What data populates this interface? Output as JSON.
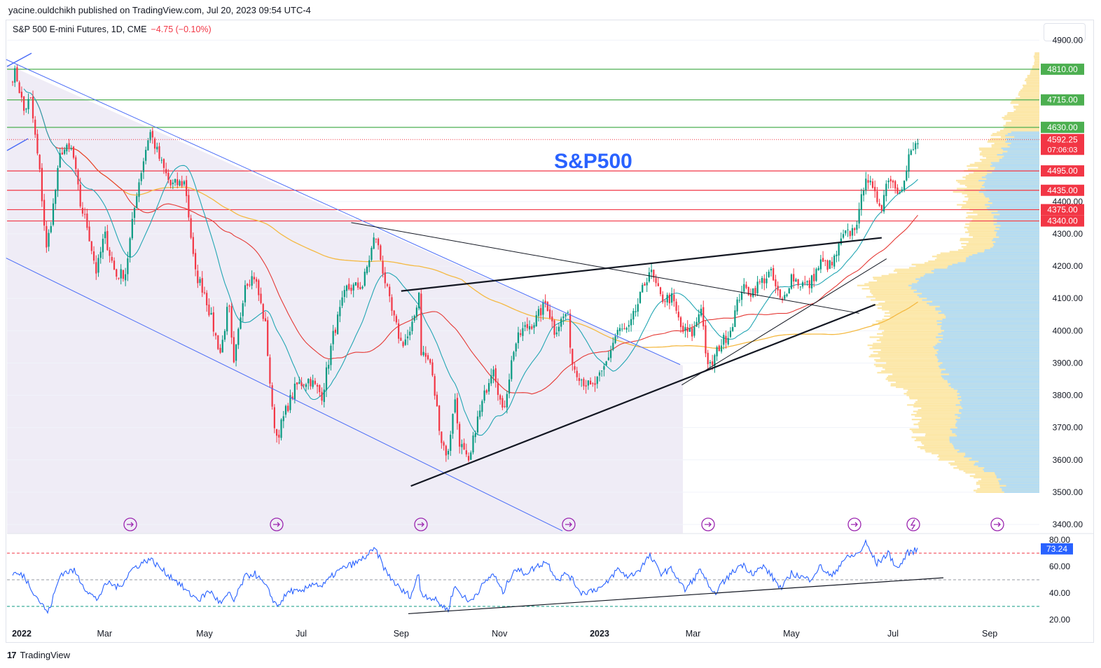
{
  "publisher": "yacine.ouldchikh published on TradingView.com, Jul 20, 2023 09:54 UTC-4",
  "symbol": {
    "name": "S&P 500 E-mini Futures, 1D, CME",
    "change": "−4.75 (−0.10%)"
  },
  "annotation": "S&P500",
  "brand": "TradingView",
  "colors": {
    "up": "#089981",
    "down": "#f23645",
    "channel": "#4a6cf7",
    "channel_fill": "#e9e5f3",
    "ma_fast": "#22a6b3",
    "ma_mid": "#e53935",
    "ma_slow": "#f4b942",
    "resistance": "#4caf50",
    "support": "#f23645",
    "rsi": "#2962ff",
    "vp_up": "#fce7a8",
    "vp_blue": "#b5dcf2",
    "event": "#9c27b0"
  },
  "chart_data": [
    {
      "type": "candlestick",
      "title": "S&P 500 E-mini Futures, 1D, CME",
      "x_ticks": [
        "2022",
        "Mar",
        "May",
        "Jul",
        "Sep",
        "Nov",
        "2023",
        "Mar",
        "May",
        "Jul",
        "Sep"
      ],
      "y_ticks": [
        3400,
        3500,
        3600,
        3700,
        3800,
        3900,
        4000,
        4100,
        4200,
        4300,
        4400,
        4900
      ],
      "ylim": [
        3380,
        4940
      ],
      "last_price": {
        "value": "4592.25",
        "countdown": "07:06:03"
      },
      "levels": [
        {
          "value": 4810,
          "label": "4810.00",
          "kind": "resistance"
        },
        {
          "value": 4715,
          "label": "4715.00",
          "kind": "resistance"
        },
        {
          "value": 4630,
          "label": "4630.00",
          "kind": "resistance"
        },
        {
          "value": 4495,
          "label": "4495.00",
          "kind": "support"
        },
        {
          "value": 4435,
          "label": "4435.00",
          "kind": "support"
        },
        {
          "value": 4375,
          "label": "4375.00",
          "kind": "support"
        },
        {
          "value": 4340,
          "label": "4340.00",
          "kind": "support"
        }
      ],
      "price_path": [
        [
          "2022-01-03",
          4790
        ],
        [
          "2022-01-05",
          4800
        ],
        [
          "2022-01-10",
          4680
        ],
        [
          "2022-01-14",
          4720
        ],
        [
          "2022-01-20",
          4480
        ],
        [
          "2022-01-24",
          4250
        ],
        [
          "2022-01-28",
          4380
        ],
        [
          "2022-02-02",
          4560
        ],
        [
          "2022-02-09",
          4560
        ],
        [
          "2022-02-14",
          4390
        ],
        [
          "2022-02-18",
          4330
        ],
        [
          "2022-02-24",
          4180
        ],
        [
          "2022-03-01",
          4300
        ],
        [
          "2022-03-08",
          4170
        ],
        [
          "2022-03-14",
          4180
        ],
        [
          "2022-03-21",
          4430
        ],
        [
          "2022-03-29",
          4620
        ],
        [
          "2022-04-05",
          4520
        ],
        [
          "2022-04-11",
          4450
        ],
        [
          "2022-04-20",
          4460
        ],
        [
          "2022-04-26",
          4180
        ],
        [
          "2022-05-02",
          4120
        ],
        [
          "2022-05-09",
          3980
        ],
        [
          "2022-05-12",
          3930
        ],
        [
          "2022-05-17",
          4090
        ],
        [
          "2022-05-20",
          3880
        ],
        [
          "2022-05-27",
          4150
        ],
        [
          "2022-06-02",
          4170
        ],
        [
          "2022-06-09",
          4010
        ],
        [
          "2022-06-13",
          3750
        ],
        [
          "2022-06-16",
          3670
        ],
        [
          "2022-06-22",
          3760
        ],
        [
          "2022-06-28",
          3830
        ],
        [
          "2022-07-06",
          3850
        ],
        [
          "2022-07-14",
          3800
        ],
        [
          "2022-07-21",
          3990
        ],
        [
          "2022-07-29",
          4130
        ],
        [
          "2022-08-08",
          4140
        ],
        [
          "2022-08-16",
          4300
        ],
        [
          "2022-08-23",
          4130
        ],
        [
          "2022-08-26",
          4060
        ],
        [
          "2022-09-01",
          3960
        ],
        [
          "2022-09-07",
          3990
        ],
        [
          "2022-09-12",
          4120
        ],
        [
          "2022-09-13",
          3940
        ],
        [
          "2022-09-19",
          3900
        ],
        [
          "2022-09-26",
          3660
        ],
        [
          "2022-09-30",
          3610
        ],
        [
          "2022-10-04",
          3800
        ],
        [
          "2022-10-07",
          3660
        ],
        [
          "2022-10-13",
          3580
        ],
        [
          "2022-10-17",
          3700
        ],
        [
          "2022-10-21",
          3770
        ],
        [
          "2022-10-28",
          3900
        ],
        [
          "2022-11-03",
          3740
        ],
        [
          "2022-11-10",
          3950
        ],
        [
          "2022-11-15",
          4000
        ],
        [
          "2022-11-23",
          4030
        ],
        [
          "2022-11-30",
          4090
        ],
        [
          "2022-12-05",
          4000
        ],
        [
          "2022-12-13",
          4060
        ],
        [
          "2022-12-16",
          3900
        ],
        [
          "2022-12-22",
          3850
        ],
        [
          "2022-12-28",
          3820
        ],
        [
          "2023-01-03",
          3860
        ],
        [
          "2023-01-06",
          3900
        ],
        [
          "2023-01-13",
          4000
        ],
        [
          "2023-01-20",
          4000
        ],
        [
          "2023-01-27",
          4100
        ],
        [
          "2023-02-02",
          4190
        ],
        [
          "2023-02-09",
          4100
        ],
        [
          "2023-02-16",
          4100
        ],
        [
          "2023-02-22",
          4000
        ],
        [
          "2023-03-01",
          3990
        ],
        [
          "2023-03-06",
          4080
        ],
        [
          "2023-03-10",
          3880
        ],
        [
          "2023-03-13",
          3900
        ],
        [
          "2023-03-17",
          3950
        ],
        [
          "2023-03-24",
          4000
        ],
        [
          "2023-03-31",
          4130
        ],
        [
          "2023-04-06",
          4120
        ],
        [
          "2023-04-14",
          4160
        ],
        [
          "2023-04-18",
          4180
        ],
        [
          "2023-04-25",
          4080
        ],
        [
          "2023-05-01",
          4170
        ],
        [
          "2023-05-05",
          4150
        ],
        [
          "2023-05-12",
          4140
        ],
        [
          "2023-05-19",
          4210
        ],
        [
          "2023-05-26",
          4200
        ],
        [
          "2023-06-02",
          4290
        ],
        [
          "2023-06-08",
          4310
        ],
        [
          "2023-06-12",
          4360
        ],
        [
          "2023-06-16",
          4490
        ],
        [
          "2023-06-21",
          4420
        ],
        [
          "2023-06-26",
          4390
        ],
        [
          "2023-06-30",
          4480
        ],
        [
          "2023-07-06",
          4440
        ],
        [
          "2023-07-10",
          4460
        ],
        [
          "2023-07-13",
          4540
        ],
        [
          "2023-07-19",
          4590
        ]
      ],
      "rsi": {
        "ticks": [
          20,
          40,
          60,
          80
        ],
        "overbought": 70,
        "mid": 50,
        "oversold": 30,
        "last": "73.24",
        "path": [
          [
            "2022-01-03",
            55
          ],
          [
            "2022-01-10",
            53
          ],
          [
            "2022-01-18",
            37
          ],
          [
            "2022-01-25",
            25
          ],
          [
            "2022-02-02",
            55
          ],
          [
            "2022-02-10",
            57
          ],
          [
            "2022-02-18",
            42
          ],
          [
            "2022-02-24",
            35
          ],
          [
            "2022-03-03",
            48
          ],
          [
            "2022-03-10",
            44
          ],
          [
            "2022-03-18",
            58
          ],
          [
            "2022-03-29",
            66
          ],
          [
            "2022-04-08",
            55
          ],
          [
            "2022-04-14",
            50
          ],
          [
            "2022-04-22",
            40
          ],
          [
            "2022-04-29",
            35
          ],
          [
            "2022-05-05",
            42
          ],
          [
            "2022-05-12",
            32
          ],
          [
            "2022-05-18",
            40
          ],
          [
            "2022-05-20",
            33
          ],
          [
            "2022-05-27",
            52
          ],
          [
            "2022-06-02",
            55
          ],
          [
            "2022-06-09",
            45
          ],
          [
            "2022-06-16",
            30
          ],
          [
            "2022-06-24",
            42
          ],
          [
            "2022-07-01",
            40
          ],
          [
            "2022-07-08",
            48
          ],
          [
            "2022-07-14",
            45
          ],
          [
            "2022-07-22",
            55
          ],
          [
            "2022-07-29",
            60
          ],
          [
            "2022-08-05",
            63
          ],
          [
            "2022-08-16",
            73
          ],
          [
            "2022-08-23",
            55
          ],
          [
            "2022-09-01",
            42
          ],
          [
            "2022-09-07",
            38
          ],
          [
            "2022-09-12",
            55
          ],
          [
            "2022-09-13",
            40
          ],
          [
            "2022-09-22",
            35
          ],
          [
            "2022-09-30",
            27
          ],
          [
            "2022-10-04",
            45
          ],
          [
            "2022-10-13",
            33
          ],
          [
            "2022-10-21",
            45
          ],
          [
            "2022-10-28",
            55
          ],
          [
            "2022-11-03",
            40
          ],
          [
            "2022-11-10",
            58
          ],
          [
            "2022-11-17",
            55
          ],
          [
            "2022-11-30",
            64
          ],
          [
            "2022-12-07",
            50
          ],
          [
            "2022-12-13",
            55
          ],
          [
            "2022-12-22",
            40
          ],
          [
            "2023-01-05",
            45
          ],
          [
            "2023-01-13",
            58
          ],
          [
            "2023-01-20",
            52
          ],
          [
            "2023-01-27",
            58
          ],
          [
            "2023-02-02",
            68
          ],
          [
            "2023-02-09",
            55
          ],
          [
            "2023-02-16",
            58
          ],
          [
            "2023-02-24",
            42
          ],
          [
            "2023-03-06",
            58
          ],
          [
            "2023-03-13",
            38
          ],
          [
            "2023-03-21",
            50
          ],
          [
            "2023-03-31",
            62
          ],
          [
            "2023-04-07",
            55
          ],
          [
            "2023-04-14",
            60
          ],
          [
            "2023-04-25",
            43
          ],
          [
            "2023-05-01",
            55
          ],
          [
            "2023-05-12",
            50
          ],
          [
            "2023-05-19",
            60
          ],
          [
            "2023-05-26",
            52
          ],
          [
            "2023-06-02",
            65
          ],
          [
            "2023-06-12",
            70
          ],
          [
            "2023-06-16",
            78
          ],
          [
            "2023-06-23",
            62
          ],
          [
            "2023-06-30",
            70
          ],
          [
            "2023-07-06",
            58
          ],
          [
            "2023-07-12",
            70
          ],
          [
            "2023-07-19",
            73
          ]
        ]
      }
    }
  ]
}
